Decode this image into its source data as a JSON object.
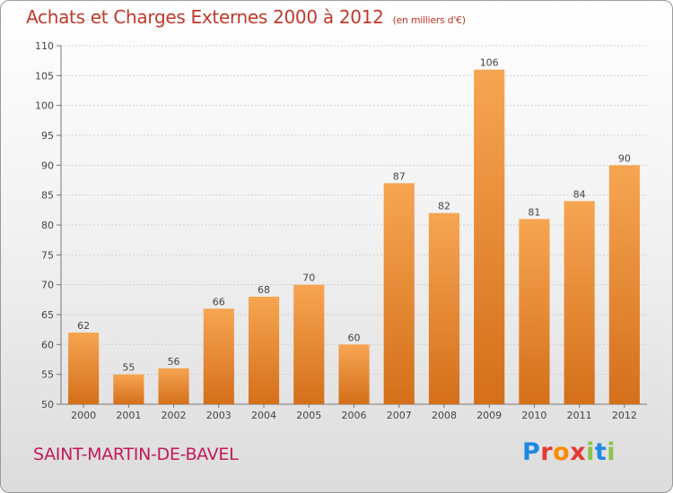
{
  "header": {
    "title": "Achats et Charges Externes 2000 à 2012",
    "unit": "(en milliers d'€)"
  },
  "footer": {
    "commune": "SAINT-MARTIN-DE-BAVEL",
    "logo": "Proxiti"
  },
  "colors": {
    "bar_light": "#f7a552",
    "bar_dark": "#d46f1a",
    "title": "#c0392b",
    "commune": "#c2185b"
  },
  "chart_data": {
    "type": "bar",
    "title": "Achats et Charges Externes 2000 à 2012",
    "subtitle": "(en milliers d'€)",
    "categories": [
      "2000",
      "2001",
      "2002",
      "2003",
      "2004",
      "2005",
      "2006",
      "2007",
      "2008",
      "2009",
      "2010",
      "2011",
      "2012"
    ],
    "values": [
      62,
      55,
      56,
      66,
      68,
      70,
      60,
      87,
      82,
      106,
      81,
      84,
      90
    ],
    "ylim": [
      50,
      110
    ],
    "yticks": [
      50,
      55,
      60,
      65,
      70,
      75,
      80,
      85,
      90,
      95,
      100,
      105,
      110
    ],
    "grid": true,
    "xlabel": "",
    "ylabel": ""
  }
}
